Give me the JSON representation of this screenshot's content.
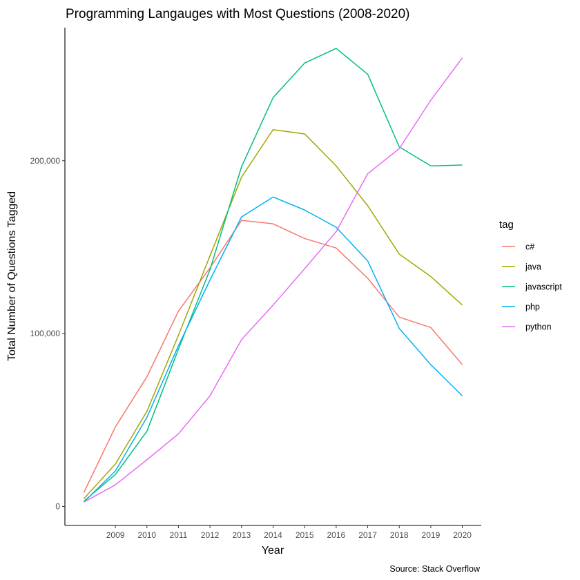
{
  "chart_data": {
    "type": "line",
    "title": "Programming Langauges with Most Questions (2008-2020)",
    "xlabel": "Year",
    "ylabel": "Total Number of Questions Tagged",
    "caption": "Source: Stack Overflow",
    "x": [
      2008,
      2009,
      2010,
      2011,
      2012,
      2013,
      2014,
      2015,
      2016,
      2017,
      2018,
      2019,
      2020
    ],
    "x_tick_labels": [
      "2009",
      "2010",
      "2011",
      "2012",
      "2013",
      "2014",
      "2015",
      "2016",
      "2017",
      "2018",
      "2019",
      "2020"
    ],
    "x_tick_values": [
      2009,
      2010,
      2011,
      2012,
      2013,
      2014,
      2015,
      2016,
      2017,
      2018,
      2019,
      2020
    ],
    "y_tick_values": [
      0,
      100000,
      200000
    ],
    "y_tick_labels": [
      "0",
      "100,000",
      "200,000"
    ],
    "ylim": [
      -11000,
      277000
    ],
    "xlim": [
      2007.4,
      2020.6
    ],
    "grid": false,
    "legend": {
      "title": "tag",
      "position": "right"
    },
    "series": [
      {
        "name": "c#",
        "color": "#F8766D",
        "values": [
          8000,
          46000,
          75000,
          113000,
          138000,
          165500,
          163500,
          155000,
          149500,
          132000,
          109500,
          103500,
          82000
        ]
      },
      {
        "name": "java",
        "color": "#A3A500",
        "values": [
          4500,
          24500,
          55000,
          99000,
          145000,
          190500,
          218000,
          215500,
          197000,
          174000,
          146000,
          133000,
          116500
        ]
      },
      {
        "name": "javascript",
        "color": "#00BF7D",
        "values": [
          3000,
          18500,
          43500,
          91000,
          137000,
          196500,
          236500,
          256500,
          265000,
          250000,
          208000,
          197000,
          197500
        ]
      },
      {
        "name": "php",
        "color": "#00B0F6",
        "values": [
          2500,
          20500,
          51500,
          93000,
          131000,
          167500,
          179000,
          171500,
          161500,
          142000,
          103000,
          82000,
          64000
        ]
      },
      {
        "name": "python",
        "color": "#E76BF3",
        "values": [
          2500,
          12500,
          27000,
          42000,
          64000,
          96500,
          116500,
          137500,
          159000,
          192500,
          207000,
          235000,
          259500
        ]
      }
    ]
  }
}
